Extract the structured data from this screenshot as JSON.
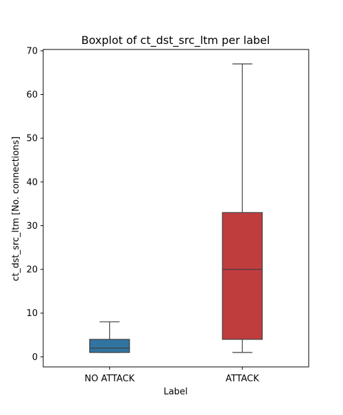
{
  "chart_data": {
    "type": "box",
    "title": "Boxplot of ct_dst_src_ltm per label",
    "xlabel": "Label",
    "ylabel": "ct_dst_src_ltm [No. connections]",
    "categories": [
      "NO ATTACK",
      "ATTACK"
    ],
    "ylim": [
      -2.3,
      70.3
    ],
    "yticks": [
      0,
      10,
      20,
      30,
      40,
      50,
      60,
      70
    ],
    "grid": false,
    "boxes": [
      {
        "label": "NO ATTACK",
        "min": 1,
        "q1": 1,
        "median": 2,
        "q3": 4,
        "max": 8,
        "color": "#3274a1"
      },
      {
        "label": "ATTACK",
        "min": 1,
        "q1": 4,
        "median": 20,
        "q3": 33,
        "max": 67,
        "color": "#c03d3e"
      }
    ],
    "line_color": "#3f3f3f"
  }
}
